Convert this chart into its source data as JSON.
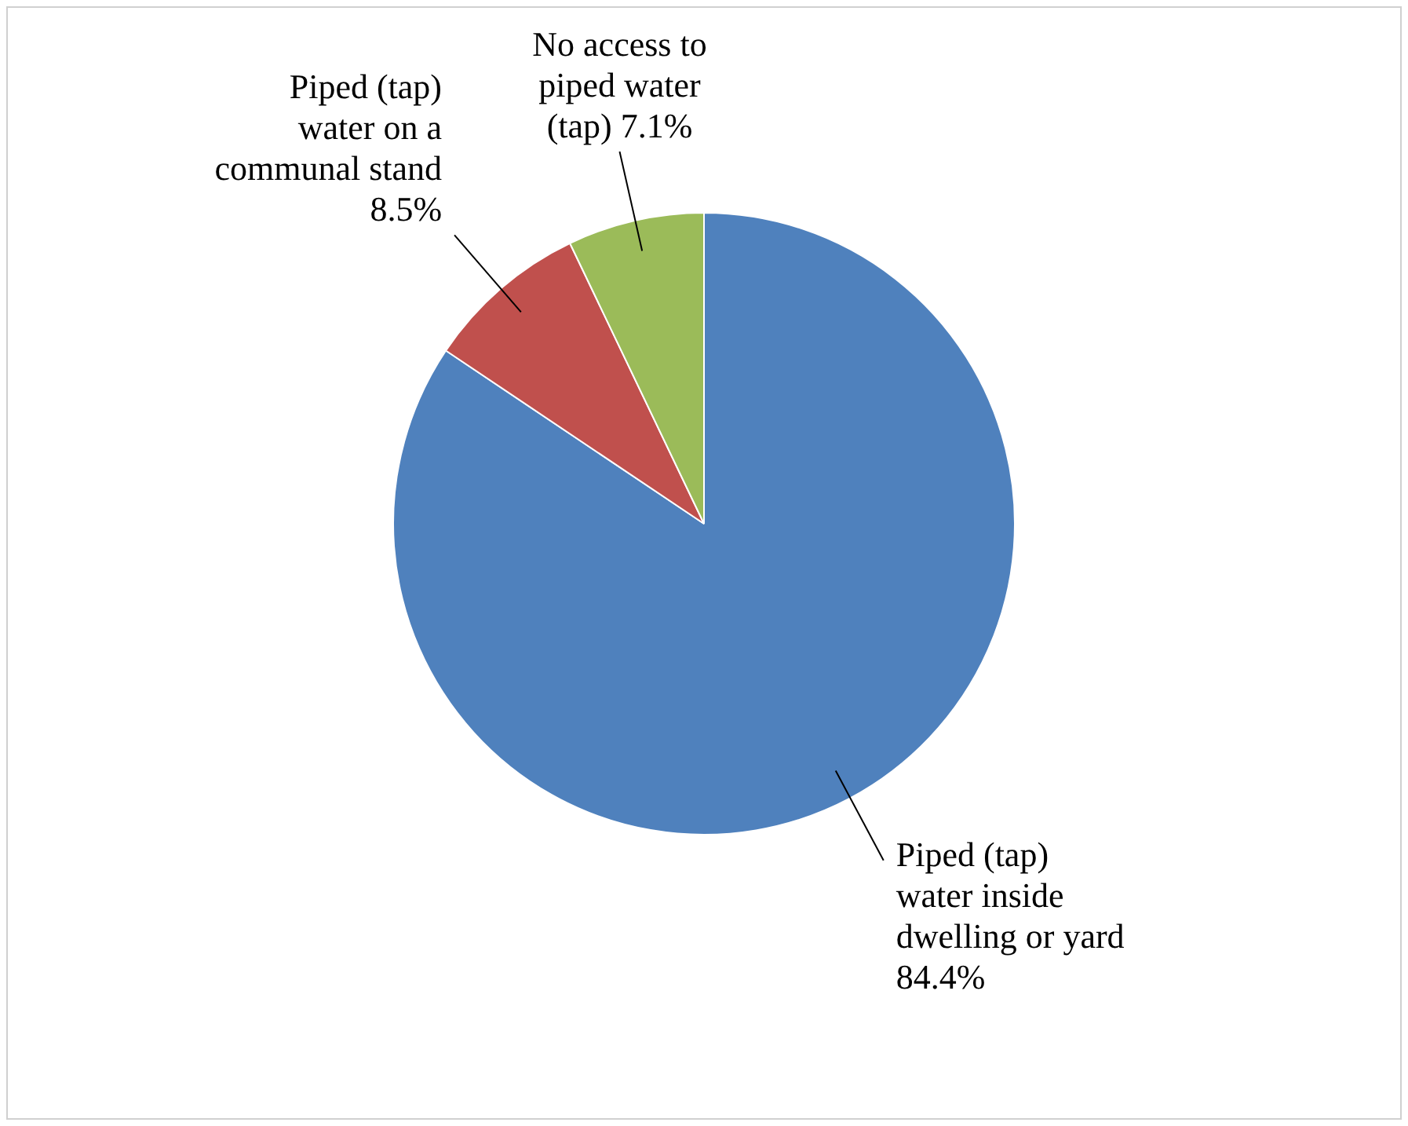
{
  "chart_data": {
    "type": "pie",
    "categories": [
      "Piped (tap) water inside dwelling or yard",
      "Piped (tap) water on a communal stand",
      "No access to piped water (tap)"
    ],
    "values": [
      84.4,
      8.5,
      7.1
    ],
    "colors": [
      "#4f81bd",
      "#c0504d",
      "#9bbb59"
    ],
    "value_labels": [
      "84.4%",
      "8.5%",
      "7.1%"
    ],
    "legend": false
  }
}
